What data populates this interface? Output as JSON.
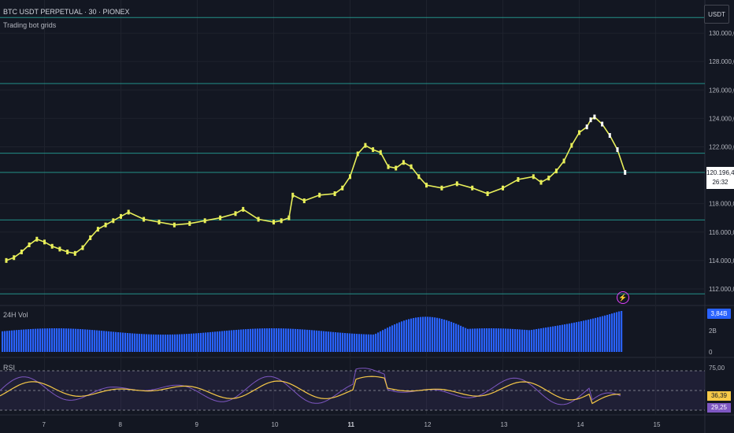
{
  "header": {
    "title": "BTC USDT PERPETUAL · 30 · PIONEX",
    "subtitle": "Trading bot grids",
    "currency": "USDT"
  },
  "price_axis": {
    "labels": [
      "130.000,0",
      "128.000,0",
      "126.000,0",
      "124.000,0",
      "122.000,0",
      "118.000,0",
      "116.000,0",
      "114.000,0",
      "112.000,0"
    ],
    "current_price": "120.196,4",
    "countdown": "26:32"
  },
  "grid_lines": [
    131100,
    126450,
    121550,
    120200,
    116850,
    111650
  ],
  "volume_pane": {
    "label": "24H Vol",
    "last_value": "3,84B",
    "axis_labels": [
      "2B",
      "0"
    ]
  },
  "rsi_pane": {
    "label": "RSI",
    "axis_labels": [
      "75,00"
    ],
    "rsi_value": "36,39",
    "ma_value": "29,25"
  },
  "time_axis": {
    "labels": [
      "7",
      "8",
      "9",
      "10",
      "11",
      "12",
      "13",
      "14",
      "15"
    ]
  },
  "colors": {
    "background": "#131722",
    "candle": "#e8ef5a",
    "grid_line": "#26a69a",
    "volume": "#2962ff",
    "rsi": "#7e57c2",
    "rsi_ma": "#f7c948"
  },
  "icons": {
    "alert": "lightning-icon"
  },
  "chart_data": {
    "type": "line",
    "title": "BTC USDT PERPETUAL · 30 · PIONEX",
    "ylim": [
      111000,
      131500
    ],
    "x_ticks": [
      "7",
      "8",
      "9",
      "10",
      "11",
      "12",
      "13",
      "14",
      "15"
    ],
    "series": [
      {
        "name": "",
        "x": [
          6.5,
          6.6,
          6.7,
          6.8,
          6.9,
          7.0,
          7.1,
          7.2,
          7.3,
          7.4,
          7.5,
          7.6,
          7.7,
          7.8,
          7.9,
          8.0,
          8.1,
          8.3,
          8.5,
          8.7,
          8.9,
          9.1,
          9.3,
          9.5,
          9.6,
          9.8,
          10.0,
          10.1,
          10.2,
          10.25,
          10.4,
          10.6,
          10.8,
          10.9,
          11.0,
          11.1,
          11.2,
          11.3,
          11.4,
          11.5,
          11.6,
          11.7,
          11.8,
          11.9,
          12.0,
          12.2,
          12.4,
          12.6,
          12.8,
          13.0,
          13.2,
          13.4,
          13.5,
          13.6,
          13.7,
          13.8,
          13.9,
          14.0,
          14.1,
          14.15,
          14.2,
          14.3,
          14.4,
          14.5,
          14.6
        ],
        "values": [
          114000,
          114200,
          114600,
          115100,
          115500,
          115300,
          115000,
          114800,
          114600,
          114500,
          114900,
          115600,
          116200,
          116500,
          116800,
          117100,
          117400,
          116900,
          116700,
          116500,
          116600,
          116800,
          117000,
          117300,
          117600,
          116900,
          116700,
          116800,
          117000,
          118600,
          118200,
          118600,
          118700,
          119100,
          119900,
          121500,
          122100,
          121800,
          121600,
          120600,
          120500,
          120900,
          120600,
          119900,
          119300,
          119100,
          119400,
          119100,
          118700,
          119100,
          119700,
          119900,
          119500,
          119800,
          120300,
          121000,
          122100,
          123000,
          123400,
          123900,
          124100,
          123600,
          122800,
          121800,
          120196
        ]
      }
    ]
  }
}
